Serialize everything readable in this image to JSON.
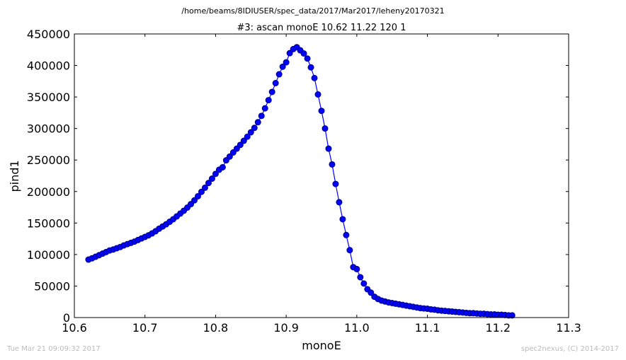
{
  "suptitle": "/home/beams/8IDIUSER/spec_data/2017/Mar2017/leheny20170321",
  "footer": {
    "timestamp": "Tue Mar 21 09:09:32 2017",
    "credit": "spec2nexus, (C) 2014-2017"
  },
  "chart_data": {
    "type": "line",
    "title": "#3: ascan  monoE 10.62 11.22  120 1",
    "xlabel": "monoE",
    "ylabel": "pind1",
    "xlim": [
      10.6,
      11.3
    ],
    "ylim": [
      0,
      450000
    ],
    "xticks": [
      "10.6",
      "10.7",
      "10.8",
      "10.9",
      "11.0",
      "11.1",
      "11.2",
      "11.3"
    ],
    "yticks": [
      "0",
      "50000",
      "100000",
      "150000",
      "200000",
      "250000",
      "300000",
      "350000",
      "400000",
      "450000"
    ],
    "grid": false,
    "marker": "circle",
    "colors": {
      "line": "#0000ff",
      "marker_fill": "#0000ff",
      "marker_edge": "#000080"
    },
    "series": [
      {
        "x": [
          10.62,
          10.625,
          10.63,
          10.635,
          10.64,
          10.645,
          10.65,
          10.655,
          10.66,
          10.665,
          10.67,
          10.675,
          10.68,
          10.685,
          10.69,
          10.695,
          10.7,
          10.705,
          10.71,
          10.715,
          10.72,
          10.725,
          10.73,
          10.735,
          10.74,
          10.745,
          10.75,
          10.755,
          10.76,
          10.765,
          10.77,
          10.775,
          10.78,
          10.785,
          10.79,
          10.795,
          10.8,
          10.805,
          10.81,
          10.815,
          10.82,
          10.825,
          10.83,
          10.835,
          10.84,
          10.845,
          10.85,
          10.855,
          10.86,
          10.865,
          10.87,
          10.875,
          10.88,
          10.885,
          10.89,
          10.895,
          10.9,
          10.905,
          10.91,
          10.915,
          10.92,
          10.925,
          10.93,
          10.935,
          10.94,
          10.945,
          10.95,
          10.955,
          10.96,
          10.965,
          10.97,
          10.975,
          10.98,
          10.985,
          10.99,
          10.995,
          11.0,
          11.005,
          11.01,
          11.015,
          11.02,
          11.025,
          11.03,
          11.035,
          11.04,
          11.045,
          11.05,
          11.055,
          11.06,
          11.065,
          11.07,
          11.075,
          11.08,
          11.085,
          11.09,
          11.095,
          11.1,
          11.105,
          11.11,
          11.115,
          11.12,
          11.125,
          11.13,
          11.135,
          11.14,
          11.145,
          11.15,
          11.155,
          11.16,
          11.165,
          11.17,
          11.175,
          11.18,
          11.185,
          11.19,
          11.195,
          11.2,
          11.205,
          11.21,
          11.215,
          11.22
        ],
        "y": [
          92000,
          94000,
          96500,
          99000,
          101500,
          104000,
          106500,
          108000,
          110000,
          112000,
          114500,
          116500,
          118500,
          120500,
          123000,
          125500,
          128000,
          130500,
          133500,
          137000,
          141000,
          144500,
          148000,
          152000,
          156000,
          160500,
          165000,
          169500,
          174500,
          180000,
          186000,
          192500,
          199500,
          206000,
          213500,
          220500,
          228000,
          234500,
          238500,
          249500,
          255500,
          262000,
          268000,
          274000,
          280500,
          287000,
          294000,
          301000,
          310000,
          320000,
          332000,
          345000,
          358000,
          372000,
          386000,
          398000,
          405000,
          419500,
          426000,
          429000,
          424000,
          419000,
          411000,
          397000,
          380000,
          354000,
          328000,
          300000,
          268000,
          243000,
          212000,
          183000,
          156000,
          131000,
          107000,
          80000,
          77000,
          64000,
          54000,
          45000,
          39500,
          33000,
          29500,
          27000,
          25500,
          24000,
          23000,
          22000,
          21000,
          20000,
          19000,
          18000,
          17000,
          16000,
          15000,
          14500,
          14000,
          13000,
          12500,
          11500,
          11000,
          10500,
          10000,
          9500,
          9000,
          8500,
          8000,
          7500,
          7000,
          7000,
          6500,
          6000,
          6000,
          5500,
          5000,
          5000,
          4500,
          4500,
          4000,
          3500,
          3500
        ]
      }
    ]
  }
}
